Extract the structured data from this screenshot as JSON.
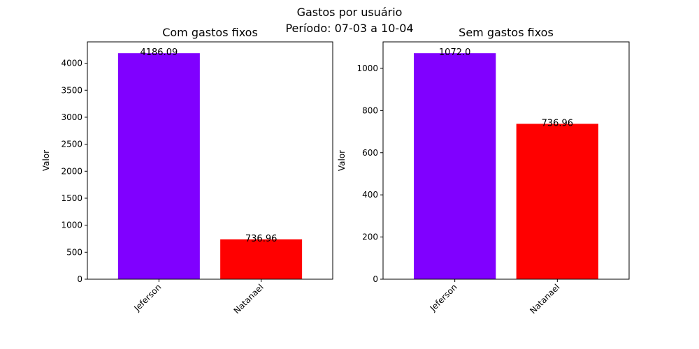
{
  "figure": {
    "title_line1": "Gastos por usuário",
    "title_line2": "Período: 07-03 a 10-04"
  },
  "chart_data": [
    {
      "type": "bar",
      "title": "Com gastos fixos",
      "xlabel": "",
      "ylabel": "Valor",
      "categories": [
        "Jeferson",
        "Natanael"
      ],
      "values": [
        4186.09,
        736.96
      ],
      "value_labels": [
        "4186.09",
        "736.96"
      ],
      "colors": [
        "#8000ff",
        "#ff0000"
      ],
      "ylim": [
        0,
        4395.39
      ],
      "yticks": [
        0,
        500,
        1000,
        1500,
        2000,
        2500,
        3000,
        3500,
        4000
      ],
      "grid": false
    },
    {
      "type": "bar",
      "title": "Sem gastos fixos",
      "xlabel": "",
      "ylabel": "Valor",
      "categories": [
        "Jeferson",
        "Natanael"
      ],
      "values": [
        1072.0,
        736.96
      ],
      "value_labels": [
        "1072.0",
        "736.96"
      ],
      "colors": [
        "#8000ff",
        "#ff0000"
      ],
      "ylim": [
        0,
        1125.6
      ],
      "yticks": [
        0,
        200,
        400,
        600,
        800,
        1000
      ],
      "grid": false
    }
  ]
}
